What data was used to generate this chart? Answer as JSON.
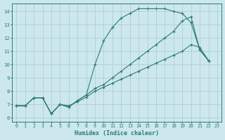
{
  "xlabel": "Humidex (Indice chaleur)",
  "bg_color": "#cce8ec",
  "grid_color": "#b0ced4",
  "line_color": "#2d7a7a",
  "xlim": [
    -0.5,
    23.5
  ],
  "ylim": [
    5.7,
    14.6
  ],
  "xticks": [
    0,
    1,
    2,
    3,
    4,
    5,
    6,
    7,
    8,
    9,
    10,
    11,
    12,
    13,
    14,
    15,
    16,
    17,
    18,
    19,
    20,
    21,
    22,
    23
  ],
  "yticks": [
    6,
    7,
    8,
    9,
    10,
    11,
    12,
    13,
    14
  ],
  "line1_x": [
    0,
    1,
    2,
    3,
    4,
    5,
    6,
    7,
    8,
    9,
    10,
    11,
    12,
    13,
    14,
    15,
    16,
    17,
    18,
    19,
    20,
    21,
    22
  ],
  "line1_y": [
    6.9,
    6.9,
    7.5,
    7.5,
    6.3,
    7.0,
    6.8,
    7.3,
    7.7,
    10.0,
    11.8,
    12.8,
    13.5,
    13.85,
    14.2,
    14.2,
    14.2,
    14.2,
    14.0,
    13.85,
    13.15,
    11.1,
    10.3
  ],
  "line2_x": [
    0,
    1,
    2,
    3,
    4,
    5,
    6,
    7,
    8,
    9,
    10,
    11,
    12,
    13,
    14,
    15,
    16,
    17,
    18,
    19,
    20,
    21,
    22
  ],
  "line2_y": [
    6.9,
    6.9,
    7.5,
    7.5,
    6.3,
    7.0,
    6.9,
    7.2,
    7.55,
    8.0,
    8.3,
    8.6,
    8.9,
    9.2,
    9.5,
    9.8,
    10.1,
    10.4,
    10.7,
    11.0,
    11.5,
    11.3,
    10.3
  ],
  "line3_x": [
    0,
    1,
    2,
    3,
    4,
    5,
    6,
    7,
    8,
    9,
    10,
    11,
    12,
    13,
    14,
    15,
    16,
    17,
    18,
    19,
    20,
    21,
    22
  ],
  "line3_y": [
    6.9,
    6.9,
    7.5,
    7.5,
    6.3,
    7.0,
    6.8,
    7.3,
    7.7,
    8.2,
    8.5,
    9.0,
    9.5,
    10.0,
    10.5,
    11.0,
    11.5,
    12.0,
    12.5,
    13.3,
    13.6,
    11.1,
    10.3
  ]
}
